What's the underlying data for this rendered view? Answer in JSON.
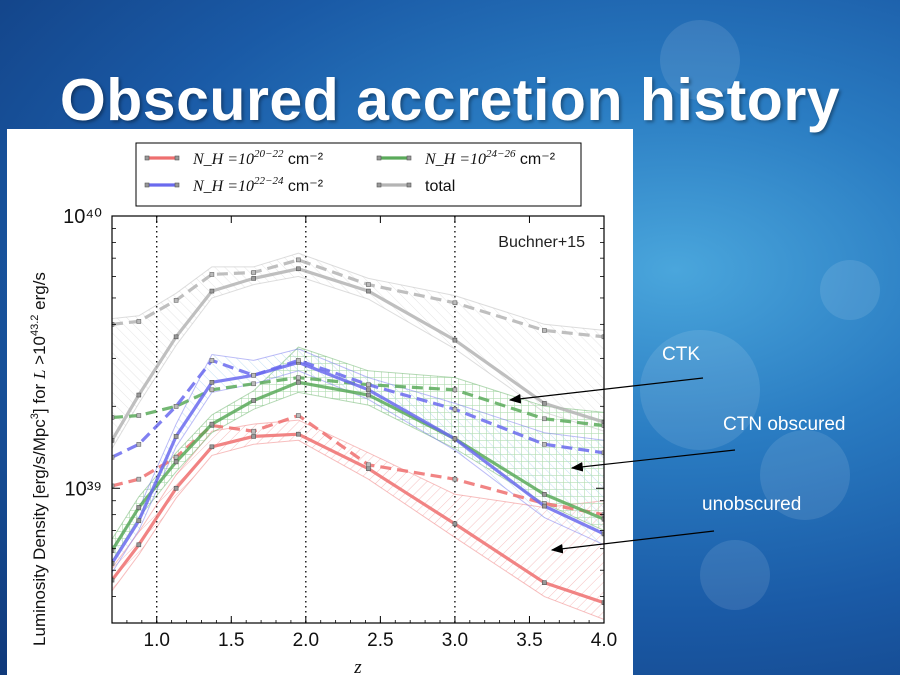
{
  "slide": {
    "title": "Obscured accretion history"
  },
  "callouts": [
    {
      "label": "CTK"
    },
    {
      "label": "CTN obscured"
    },
    {
      "label": "unobscured"
    }
  ],
  "chart_data": {
    "type": "line",
    "ylabel": "Luminosity Density [erg/s/Mpc³] for L>10^43.2 erg/s",
    "xlabel": "z",
    "annotation": "Buchner+15",
    "x_scale": "linear",
    "y_scale": "log",
    "xlim": [
      0.7,
      4.0
    ],
    "ylim": [
      3.2e+38,
      1e+40
    ],
    "x_ticks": [
      1.0,
      1.5,
      2.0,
      2.5,
      3.0,
      3.5,
      4.0
    ],
    "x_tick_labels": [
      "1.0",
      "1.5",
      "2.0",
      "2.5",
      "3.0",
      "3.5",
      "4.0"
    ],
    "y_ticks": [
      1e+39,
      1e+40
    ],
    "y_tick_labels": [
      "10³⁹",
      "10⁴⁰"
    ],
    "vlines": [
      1.0,
      2.0,
      3.0
    ],
    "legend": {
      "position": "top",
      "entries": [
        {
          "base": "N_H =10",
          "exp": "20−22",
          "unit": " cm⁻²",
          "color": "#ee6f6f"
        },
        {
          "base": "N_H =10",
          "exp": "22−24",
          "unit": " cm⁻²",
          "color": "#6a6aee"
        },
        {
          "base": "N_H =10",
          "exp": "24−26",
          "unit": " cm⁻²",
          "color": "#5aaa5a"
        },
        {
          "text": "total",
          "color": "#b4b4b4"
        }
      ]
    },
    "series": [
      {
        "color": "#ee6f6f",
        "x": [
          0.7,
          0.88,
          1.13,
          1.37,
          1.65,
          1.95,
          2.42,
          3.0,
          3.6,
          4.0
        ],
        "y": [
          4.6e+38,
          6.2e+38,
          1e+39,
          1.42e+39,
          1.55e+39,
          1.58e+39,
          1.18e+39,
          7.4e+38,
          4.5e+38,
          3.8e+38
        ],
        "dashed_y": [
          1.02e+39,
          1.08e+39,
          1.3e+39,
          1.7e+39,
          1.62e+39,
          1.85e+39,
          1.22e+39,
          1.08e+39,
          8.8e+38,
          8e+38
        ],
        "band_lo": [
          4.2e+38,
          5.7e+38,
          9.2e+38,
          1.32e+39,
          1.45e+39,
          1.5e+39,
          1.08e+39,
          6.6e+38,
          4e+38,
          3.3e+38
        ],
        "band_hi": [
          5.1e+38,
          6.9e+38,
          1.12e+39,
          1.62e+39,
          1.72e+39,
          1.78e+39,
          1.35e+39,
          9.5e+38,
          8.5e+38,
          9e+38
        ]
      },
      {
        "color": "#6a6aee",
        "x": [
          0.7,
          0.88,
          1.13,
          1.37,
          1.65,
          1.95,
          2.42,
          3.0,
          3.6,
          4.0
        ],
        "y": [
          5.3e+38,
          7.6e+38,
          1.55e+39,
          2.45e+39,
          2.6e+39,
          2.9e+39,
          2.3e+39,
          1.52e+39,
          8.6e+38,
          6.8e+38
        ],
        "dashed_y": [
          1.3e+39,
          1.45e+39,
          2e+39,
          2.95e+39,
          2.6e+39,
          2.95e+39,
          2.4e+39,
          1.95e+39,
          1.45e+39,
          1.35e+39
        ],
        "band_lo": [
          4.9e+38,
          7e+38,
          1.42e+39,
          2.25e+39,
          2.42e+39,
          2.7e+39,
          2.12e+39,
          1.38e+39,
          7.8e+38,
          6.2e+38
        ],
        "band_hi": [
          6e+38,
          8.4e+38,
          1.72e+39,
          3.1e+39,
          2.95e+39,
          3.25e+39,
          2.55e+39,
          2.05e+39,
          1.6e+39,
          1.5e+39
        ]
      },
      {
        "color": "#5aaa5a",
        "x": [
          0.7,
          0.88,
          1.13,
          1.37,
          1.65,
          1.95,
          2.42,
          3.0,
          3.6,
          4.0
        ],
        "y": [
          5.9e+38,
          8.5e+38,
          1.25e+39,
          1.72e+39,
          2.1e+39,
          2.45e+39,
          2.2e+39,
          1.52e+39,
          9.5e+38,
          7.7e+38
        ],
        "dashed_y": [
          1.82e+39,
          1.85e+39,
          2e+39,
          2.3e+39,
          2.42e+39,
          2.55e+39,
          2.4e+39,
          2.3e+39,
          1.8e+39,
          1.7e+39
        ],
        "band_lo": [
          5.4e+38,
          7.8e+38,
          1.15e+39,
          1.6e+39,
          1.95e+39,
          2.25e+39,
          2.02e+39,
          1.4e+39,
          8.8e+38,
          7e+38
        ],
        "band_hi": [
          6.5e+38,
          9.3e+38,
          1.35e+39,
          1.86e+39,
          2.28e+39,
          3.3e+39,
          2.7e+39,
          2.55e+39,
          2e+39,
          1.9e+39
        ]
      },
      {
        "color": "#b4b4b4",
        "x": [
          0.7,
          0.88,
          1.13,
          1.37,
          1.65,
          1.95,
          2.42,
          3.0,
          3.6,
          4.0
        ],
        "y": [
          1.5e+39,
          2.2e+39,
          3.6e+39,
          5.3e+39,
          5.9e+39,
          6.4e+39,
          5.3e+39,
          3.5e+39,
          2.05e+39,
          1.75e+39
        ],
        "dashed_y": [
          4e+39,
          4.1e+39,
          4.9e+39,
          6.1e+39,
          6.2e+39,
          6.9e+39,
          5.6e+39,
          4.8e+39,
          3.8e+39,
          3.6e+39
        ],
        "band_lo": [
          1.4e+39,
          2.05e+39,
          3.35e+39,
          5e+39,
          5.6e+39,
          6e+39,
          4.95e+39,
          3.25e+39,
          1.9e+39,
          1.62e+39
        ],
        "band_hi": [
          4.2e+39,
          4.3e+39,
          5.2e+39,
          6.5e+39,
          6.5e+39,
          7.3e+39,
          5.9e+39,
          5.1e+39,
          4e+39,
          3.8e+39
        ]
      }
    ]
  }
}
